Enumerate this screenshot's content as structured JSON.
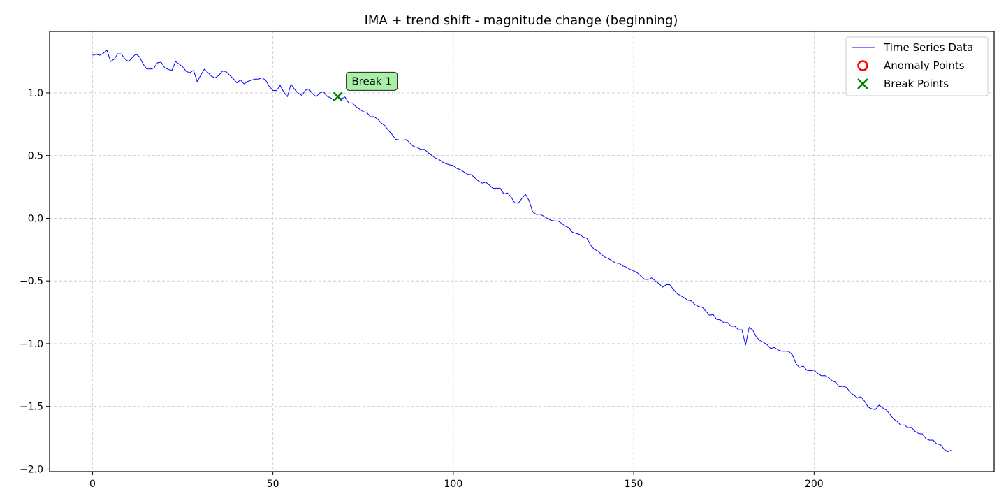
{
  "chart_data": {
    "type": "line",
    "title": "IMA + trend shift - magnitude change (beginning)",
    "xlabel": "",
    "ylabel": "",
    "xlim": [
      -11.9,
      249.9
    ],
    "ylim": [
      -2.02,
      1.49
    ],
    "xticks": [
      0,
      50,
      100,
      150,
      200
    ],
    "yticks": [
      -2.0,
      -1.5,
      -1.0,
      -0.5,
      0.0,
      0.5,
      1.0
    ],
    "ytick_labels": [
      "−2.0",
      "−1.5",
      "−1.0",
      "−0.5",
      "0.0",
      "0.5",
      "1.0"
    ],
    "grid": true,
    "legend_position": "top-right",
    "legend": [
      {
        "label": "Time Series Data",
        "marker": "line",
        "color": "#0000ff"
      },
      {
        "label": "Anomaly Points",
        "marker": "circle",
        "color": "#ff0000"
      },
      {
        "label": "Break Points",
        "marker": "x",
        "color": "#008000"
      }
    ],
    "series": [
      {
        "name": "Time Series Data",
        "color": "#0000ff",
        "anchors": [
          [
            0,
            1.3
          ],
          [
            2,
            1.3
          ],
          [
            4,
            1.34
          ],
          [
            5,
            1.25
          ],
          [
            8,
            1.31
          ],
          [
            10,
            1.25
          ],
          [
            12,
            1.31
          ],
          [
            14,
            1.23
          ],
          [
            16,
            1.19
          ],
          [
            18,
            1.24
          ],
          [
            22,
            1.18
          ],
          [
            23,
            1.25
          ],
          [
            26,
            1.17
          ],
          [
            28,
            1.18
          ],
          [
            29,
            1.09
          ],
          [
            31,
            1.19
          ],
          [
            34,
            1.12
          ],
          [
            37,
            1.17
          ],
          [
            40,
            1.08
          ],
          [
            45,
            1.11
          ],
          [
            48,
            1.1
          ],
          [
            50,
            1.02
          ],
          [
            52,
            1.06
          ],
          [
            54,
            0.97
          ],
          [
            55,
            1.07
          ],
          [
            58,
            0.98
          ],
          [
            60,
            1.03
          ],
          [
            62,
            0.97
          ],
          [
            64,
            1.01
          ],
          [
            66,
            0.96
          ],
          [
            68,
            0.97
          ],
          [
            72,
            0.92
          ],
          [
            75,
            0.85
          ],
          [
            78,
            0.81
          ],
          [
            80,
            0.76
          ],
          [
            84,
            0.63
          ],
          [
            88,
            0.6
          ],
          [
            92,
            0.55
          ],
          [
            96,
            0.47
          ],
          [
            100,
            0.42
          ],
          [
            104,
            0.35
          ],
          [
            108,
            0.28
          ],
          [
            112,
            0.24
          ],
          [
            116,
            0.17
          ],
          [
            118,
            0.12
          ],
          [
            120,
            0.19
          ],
          [
            122,
            0.05
          ],
          [
            126,
            0.0
          ],
          [
            130,
            -0.04
          ],
          [
            134,
            -0.12
          ],
          [
            136,
            -0.15
          ],
          [
            138,
            -0.21
          ],
          [
            140,
            -0.26
          ],
          [
            142,
            -0.31
          ],
          [
            146,
            -0.36
          ],
          [
            148,
            -0.39
          ],
          [
            150,
            -0.42
          ],
          [
            152,
            -0.46
          ],
          [
            156,
            -0.5
          ],
          [
            158,
            -0.55
          ],
          [
            160,
            -0.53
          ],
          [
            162,
            -0.6
          ],
          [
            166,
            -0.66
          ],
          [
            170,
            -0.74
          ],
          [
            174,
            -0.81
          ],
          [
            178,
            -0.86
          ],
          [
            180,
            -0.89
          ],
          [
            181,
            -1.01
          ],
          [
            182,
            -0.87
          ],
          [
            186,
            -0.99
          ],
          [
            190,
            -1.05
          ],
          [
            194,
            -1.09
          ],
          [
            196,
            -1.19
          ],
          [
            200,
            -1.21
          ],
          [
            204,
            -1.27
          ],
          [
            208,
            -1.34
          ],
          [
            211,
            -1.41
          ],
          [
            214,
            -1.46
          ],
          [
            216,
            -1.52
          ],
          [
            218,
            -1.49
          ],
          [
            222,
            -1.6
          ],
          [
            226,
            -1.67
          ],
          [
            228,
            -1.7
          ],
          [
            230,
            -1.72
          ],
          [
            232,
            -1.77
          ],
          [
            234,
            -1.8
          ],
          [
            236,
            -1.84
          ],
          [
            238,
            -1.85
          ]
        ]
      }
    ],
    "anomaly_points": [],
    "break_points": [
      {
        "x": 68,
        "y": 0.97,
        "label": "Break 1"
      }
    ]
  }
}
